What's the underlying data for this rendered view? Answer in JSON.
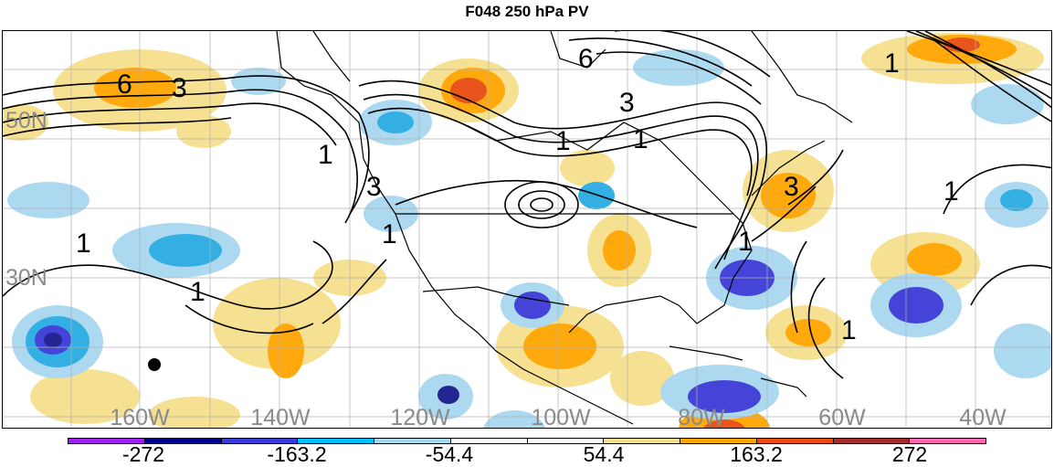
{
  "title": "F048 250 hPa PV",
  "lat_labels": [
    "50N",
    "30N"
  ],
  "lon_labels": [
    "160W",
    "140W",
    "120W",
    "100W",
    "80W",
    "60W",
    "40W"
  ],
  "contour_labels": [
    "6",
    "3",
    "6",
    "3",
    "1",
    "1",
    "3",
    "1",
    "1",
    "1",
    "1",
    "3",
    "1",
    "1",
    "1",
    "1"
  ],
  "colorbar": {
    "labels": [
      "-272",
      "-163.2",
      "-54.4",
      "54.4",
      "163.2",
      "272"
    ],
    "colors": [
      "#a020f0",
      "#00008b",
      "#3a3ad6",
      "#00bfff",
      "#a8d8f0",
      "#ffffff",
      "#ffffff",
      "#f5e08c",
      "#ffa500",
      "#e84a10",
      "#a52a2a",
      "#ff69b4"
    ]
  },
  "fill_colors": {
    "light_blue": "#a8d8f0",
    "cyan": "#29abe2",
    "blue": "#3a3ad6",
    "navy": "#1a1a8c",
    "light_yellow": "#f5e08c",
    "orange": "#ffa500",
    "red_orange": "#e84a10"
  }
}
